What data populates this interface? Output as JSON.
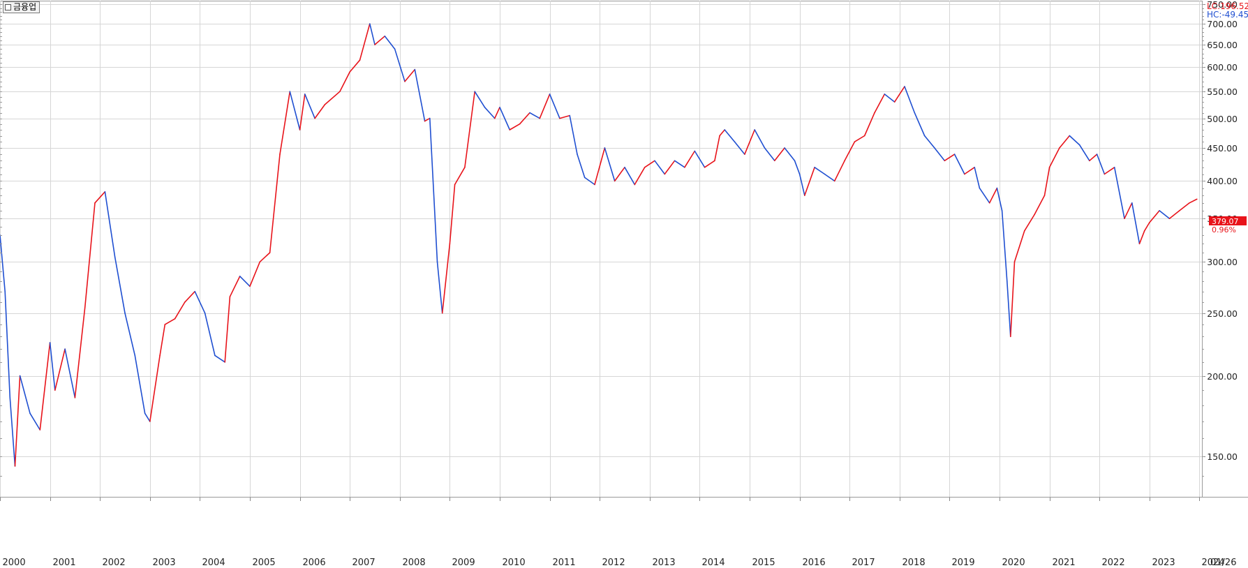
{
  "window": {
    "title": "금융업"
  },
  "info": {
    "lc": "LC:196.52",
    "hc": "HC:-49.45",
    "last_price": "379.07",
    "last_change": "0.96%",
    "date_label": "01/26"
  },
  "colors": {
    "up": "#e8131a",
    "down": "#1f4fd1",
    "grid": "#d6d6d6",
    "axis_text": "#222222",
    "price_box": "#e8131a"
  },
  "chart_data": {
    "type": "line",
    "scale": "log",
    "grid": true,
    "ylim": [
      130,
      760
    ],
    "xlim": [
      2000.0,
      2024.05
    ],
    "y_ticks": [
      150,
      200,
      250,
      300,
      350,
      400,
      450,
      500,
      550,
      600,
      650,
      700,
      750
    ],
    "y_tick_labels": [
      "150.00",
      "200.00",
      "250.00",
      "300.00",
      "350.00",
      "400.00",
      "450.00",
      "500.00",
      "550.00",
      "600.00",
      "650.00",
      "700.00",
      "750.00"
    ],
    "x_ticks": [
      2000,
      2001,
      2002,
      2003,
      2004,
      2005,
      2006,
      2007,
      2008,
      2009,
      2010,
      2011,
      2012,
      2013,
      2014,
      2015,
      2016,
      2017,
      2018,
      2019,
      2020,
      2021,
      2022,
      2023,
      2024
    ],
    "x_tick_labels": [
      "2000",
      "2001",
      "2002",
      "2003",
      "2004",
      "2005",
      "2006",
      "2007",
      "2008",
      "2009",
      "2010",
      "2011",
      "2012",
      "2013",
      "2014",
      "2015",
      "2016",
      "2017",
      "2018",
      "2019",
      "2020",
      "2021",
      "2022",
      "2023",
      "2024"
    ],
    "series": [
      {
        "x": [
          2000.0,
          2000.1,
          2000.2,
          2000.3,
          2000.4,
          2000.6,
          2000.8,
          2001.0,
          2001.1,
          2001.3,
          2001.5,
          2001.7,
          2001.9,
          2002.1,
          2002.3,
          2002.5,
          2002.7,
          2002.9,
          2003.0,
          2003.2,
          2003.3,
          2003.5,
          2003.7,
          2003.9,
          2004.1,
          2004.3,
          2004.5,
          2004.6,
          2004.8,
          2005.0,
          2005.2,
          2005.4,
          2005.6,
          2005.8,
          2006.0,
          2006.1,
          2006.3,
          2006.5,
          2006.8,
          2007.0,
          2007.2,
          2007.4,
          2007.5,
          2007.7,
          2007.9,
          2008.1,
          2008.3,
          2008.5,
          2008.6,
          2008.75,
          2008.85,
          2009.0,
          2009.1,
          2009.3,
          2009.5,
          2009.7,
          2009.9,
          2010.0,
          2010.2,
          2010.4,
          2010.6,
          2010.8,
          2011.0,
          2011.2,
          2011.4,
          2011.55,
          2011.7,
          2011.9,
          2012.1,
          2012.3,
          2012.5,
          2012.7,
          2012.9,
          2013.1,
          2013.3,
          2013.5,
          2013.7,
          2013.9,
          2014.1,
          2014.3,
          2014.4,
          2014.5,
          2014.7,
          2014.9,
          2015.1,
          2015.3,
          2015.5,
          2015.7,
          2015.9,
          2016.0,
          2016.1,
          2016.3,
          2016.5,
          2016.7,
          2016.9,
          2017.1,
          2017.3,
          2017.5,
          2017.7,
          2017.9,
          2018.1,
          2018.3,
          2018.5,
          2018.7,
          2018.9,
          2019.1,
          2019.3,
          2019.5,
          2019.6,
          2019.8,
          2019.95,
          2020.05,
          2020.15,
          2020.22,
          2020.3,
          2020.5,
          2020.7,
          2020.9,
          2021.0,
          2021.2,
          2021.4,
          2021.6,
          2021.8,
          2021.95,
          2022.1,
          2022.3,
          2022.5,
          2022.65,
          2022.8,
          2022.9,
          2023.0,
          2023.2,
          2023.4,
          2023.6,
          2023.8,
          2023.95
        ],
        "values": [
          330,
          270,
          185,
          145,
          200,
          175,
          165,
          225,
          190,
          220,
          185,
          255,
          370,
          385,
          305,
          250,
          215,
          175,
          170,
          215,
          240,
          245,
          260,
          270,
          250,
          215,
          210,
          265,
          285,
          275,
          300,
          310,
          440,
          550,
          480,
          545,
          500,
          525,
          550,
          590,
          615,
          700,
          650,
          670,
          640,
          570,
          595,
          495,
          500,
          300,
          250,
          320,
          395,
          420,
          550,
          520,
          500,
          520,
          480,
          490,
          510,
          500,
          545,
          500,
          505,
          440,
          405,
          395,
          450,
          400,
          420,
          395,
          420,
          430,
          410,
          430,
          420,
          445,
          420,
          430,
          470,
          480,
          460,
          440,
          480,
          450,
          430,
          450,
          430,
          410,
          380,
          420,
          410,
          400,
          430,
          460,
          470,
          510,
          545,
          530,
          560,
          510,
          470,
          450,
          430,
          440,
          410,
          420,
          390,
          370,
          390,
          360,
          280,
          230,
          300,
          335,
          355,
          380,
          420,
          450,
          470,
          455,
          430,
          440,
          410,
          420,
          350,
          370,
          320,
          335,
          345,
          360,
          350,
          360,
          370,
          375
        ]
      }
    ]
  }
}
